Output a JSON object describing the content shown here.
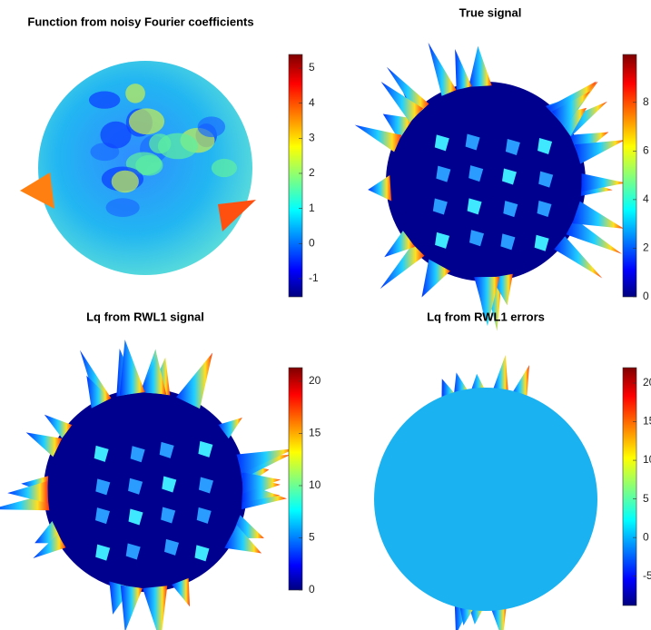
{
  "chart_data": [
    {
      "type": "surface",
      "title": "Function from noisy Fourier coefficients",
      "colormap": "jet",
      "clim": [
        -1.52,
        5.39
      ],
      "cticks": [
        -1,
        0,
        1,
        2,
        3,
        4,
        5
      ]
    },
    {
      "type": "surface",
      "title": "True signal",
      "colormap": "jet",
      "clim": [
        0,
        9.97
      ],
      "cticks": [
        0,
        2,
        4,
        6,
        8
      ]
    },
    {
      "type": "surface",
      "title": "Lq from RWL1 signal",
      "colormap": "jet",
      "clim": [
        0,
        21.3
      ],
      "cticks": [
        0,
        5,
        10,
        15,
        20
      ]
    },
    {
      "type": "surface",
      "title": "Lq from RWL1 errors",
      "colormap": "jet",
      "clim": [
        -8.8,
        22
      ],
      "cticks": [
        -5,
        0,
        5,
        10,
        15,
        20
      ]
    }
  ]
}
